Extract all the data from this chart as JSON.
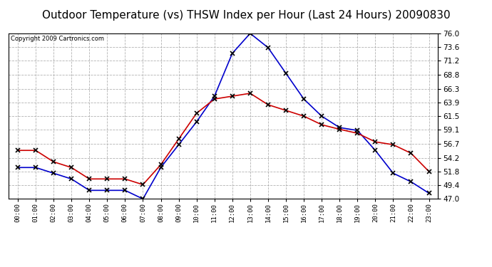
{
  "title": "Outdoor Temperature (vs) THSW Index per Hour (Last 24 Hours) 20090830",
  "copyright": "Copyright 2009 Cartronics.com",
  "hours": [
    "00:00",
    "01:00",
    "02:00",
    "03:00",
    "04:00",
    "05:00",
    "06:00",
    "07:00",
    "08:00",
    "09:00",
    "10:00",
    "11:00",
    "12:00",
    "13:00",
    "14:00",
    "15:00",
    "16:00",
    "17:00",
    "18:00",
    "19:00",
    "20:00",
    "21:00",
    "22:00",
    "23:00"
  ],
  "temp": [
    52.5,
    52.5,
    51.5,
    50.5,
    48.5,
    48.5,
    48.5,
    47.0,
    52.5,
    56.5,
    60.5,
    65.0,
    72.5,
    76.0,
    73.5,
    69.0,
    64.5,
    61.5,
    59.5,
    59.0,
    55.5,
    51.5,
    50.0,
    48.0
  ],
  "thsw": [
    55.5,
    55.5,
    53.5,
    52.5,
    50.5,
    50.5,
    50.5,
    49.5,
    53.0,
    57.5,
    62.0,
    64.5,
    65.0,
    65.5,
    63.5,
    62.5,
    61.5,
    60.0,
    59.2,
    58.5,
    57.0,
    56.5,
    55.0,
    51.8
  ],
  "temp_color": "#0000cc",
  "thsw_color": "#cc0000",
  "ylim": [
    47.0,
    76.0
  ],
  "yticks": [
    47.0,
    49.4,
    51.8,
    54.2,
    56.7,
    59.1,
    61.5,
    63.9,
    66.3,
    68.8,
    71.2,
    73.6,
    76.0
  ],
  "background_color": "#ffffff",
  "plot_bg_color": "#ffffff",
  "grid_color": "#aaaaaa",
  "title_fontsize": 11,
  "title_bg": "#cccccc",
  "marker": "x",
  "marker_color": "#000000",
  "marker_size": 4,
  "line_width": 1.2
}
